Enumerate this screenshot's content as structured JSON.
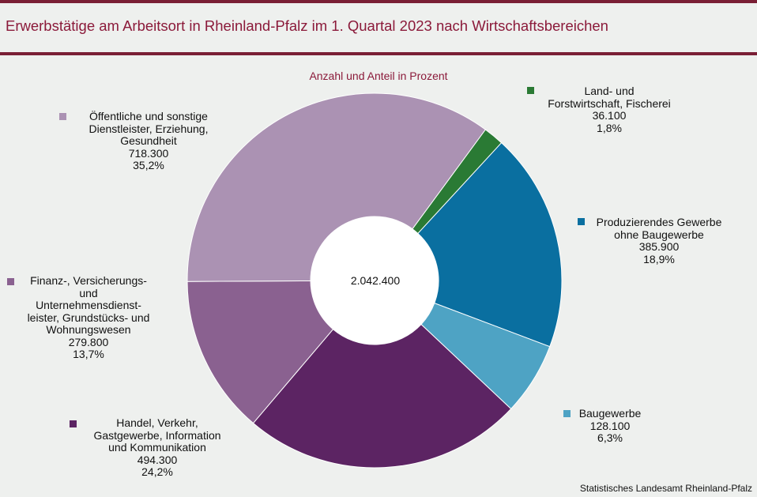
{
  "header": {
    "title": "Erwerbstätige am Arbeitsort in Rheinland-Pfalz im 1. Quartal 2023 nach Wirtschaftsbereichen"
  },
  "chart_data": {
    "type": "pie",
    "subtitle": "Anzahl und Anteil in Prozent",
    "total": "2.042.400",
    "source": "Statistisches Landesamt Rheinland-Pfalz",
    "slices": [
      {
        "label_lines": [
          "Land- und",
          "Forstwirtschaft, Fischerei"
        ],
        "value": 36100,
        "value_text": "36.100",
        "percent": "1,8%",
        "color": "#2a7a34"
      },
      {
        "label_lines": [
          "Produzierendes Gewerbe",
          "ohne Baugewerbe"
        ],
        "value": 385900,
        "value_text": "385.900",
        "percent": "18,9%",
        "color": "#0a6fa0"
      },
      {
        "label_lines": [
          "Baugewerbe"
        ],
        "value": 128100,
        "value_text": "128.100",
        "percent": "6,3%",
        "color": "#4ea3c4"
      },
      {
        "label_lines": [
          "Handel, Verkehr,",
          "Gastgewerbe, Information",
          "und Kommunikation"
        ],
        "value": 494300,
        "value_text": "494.300",
        "percent": "24,2%",
        "color": "#5c2463"
      },
      {
        "label_lines": [
          "Finanz-, Versicherungs-",
          "und",
          "Unternehmensdienst-",
          "leister, Grundstücks- und",
          "Wohnungswesen"
        ],
        "value": 279800,
        "value_text": "279.800",
        "percent": "13,7%",
        "color": "#8a6190"
      },
      {
        "label_lines": [
          "Öffentliche und sonstige",
          "Dienstleister, Erziehung,",
          "Gesundheit"
        ],
        "value": 718300,
        "value_text": "718.300",
        "percent": "35,2%",
        "color": "#ab92b3"
      }
    ]
  }
}
